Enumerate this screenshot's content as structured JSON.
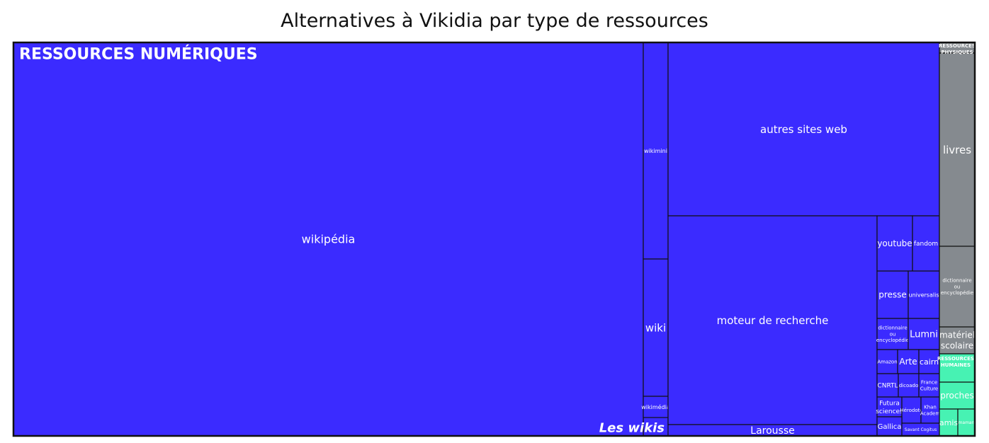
{
  "chart_data": {
    "type": "treemap",
    "title": "Alternatives à Vikidia par type de ressources",
    "groups": [
      {
        "name": "RESSOURCES NUMÉRIQUES",
        "color": "#3b2bff",
        "items": [
          {
            "label": "wikipédia"
          },
          {
            "label": "wikimini"
          },
          {
            "label": "wiki"
          },
          {
            "label": "wikimédia"
          },
          {
            "label": "Les wikis"
          },
          {
            "label": "autres sites web"
          },
          {
            "label": "moteur de recherche"
          },
          {
            "label": "Larousse"
          },
          {
            "label": "youtube"
          },
          {
            "label": "fandom"
          },
          {
            "label": "presse"
          },
          {
            "label": "universalis"
          },
          {
            "label": "dictionnaire ou encyclopédie"
          },
          {
            "label": "Lumni"
          },
          {
            "label": "Amazon"
          },
          {
            "label": "Arte"
          },
          {
            "label": "cairn"
          },
          {
            "label": "CNRTL"
          },
          {
            "label": "dicoado"
          },
          {
            "label": "France Culture"
          },
          {
            "label": "Futura sciences"
          },
          {
            "label": "Hérodote"
          },
          {
            "label": "Khan Academy"
          },
          {
            "label": "Gallica"
          },
          {
            "label": "Savant Cogitus"
          }
        ]
      },
      {
        "name": "RESSOURCES PHYSIQUES",
        "color": "#858a8f",
        "items": [
          {
            "label": "livres"
          },
          {
            "label": "dictionnaire ou encyclopédie"
          },
          {
            "label": "matériel scolaire"
          }
        ]
      },
      {
        "name": "RESSOURCES HUMAINES",
        "color": "#47f2b3",
        "items": [
          {
            "label": "proches"
          },
          {
            "label": "amis"
          },
          {
            "label": "maman"
          }
        ]
      }
    ]
  }
}
